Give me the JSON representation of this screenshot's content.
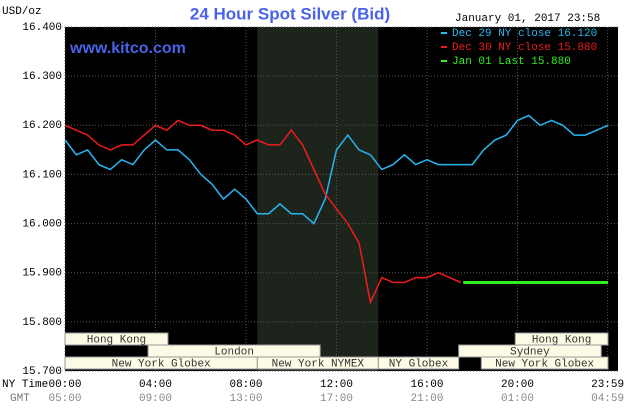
{
  "chart_data": {
    "type": "line",
    "title": "24 Hour Spot Silver (Bid)",
    "y_axis_label": "USD/oz",
    "timestamp": "January 01, 2017 23:58",
    "watermark": "www.kitco.com",
    "x_row_labels": [
      "NY Time",
      "GMT"
    ],
    "xlim": [
      0,
      24
    ],
    "xticks": [
      {
        "value": 0,
        "label": "00:00"
      },
      {
        "value": 4,
        "label": "04:00"
      },
      {
        "value": 8,
        "label": "08:00"
      },
      {
        "value": 12,
        "label": "12:00"
      },
      {
        "value": 16,
        "label": "16:00"
      },
      {
        "value": 20,
        "label": "20:00"
      },
      {
        "value": 23.983,
        "label": "23:59"
      }
    ],
    "gmt_labels": [
      "05:00",
      "09:00",
      "13:00",
      "17:00",
      "21:00",
      "01:00",
      "04:59"
    ],
    "ylim": [
      15.7,
      16.4
    ],
    "yticks": [
      {
        "value": 15.7,
        "label": "15.700"
      },
      {
        "value": 15.8,
        "label": "15.800"
      },
      {
        "value": 15.9,
        "label": "15.900"
      },
      {
        "value": 16.0,
        "label": "16.000"
      },
      {
        "value": 16.1,
        "label": "16.100"
      },
      {
        "value": 16.2,
        "label": "16.200"
      },
      {
        "value": 16.3,
        "label": "16.300"
      },
      {
        "value": 16.4,
        "label": "16.400"
      }
    ],
    "grid": true,
    "shaded_range": [
      8.5,
      13.85
    ],
    "series": [
      {
        "name": "Dec 29 NY close 16.120",
        "color": "#29b6f0",
        "x": [
          0,
          0.5,
          1,
          1.5,
          2,
          2.5,
          3,
          3.5,
          4,
          4.5,
          5,
          5.5,
          6,
          6.5,
          7,
          7.5,
          8,
          8.5,
          9,
          9.5,
          10,
          10.5,
          11,
          11.5,
          12,
          12.5,
          13,
          13.5,
          14,
          14.5,
          15,
          15.5,
          16,
          16.5,
          17,
          17.5,
          18,
          18.5,
          19,
          19.5,
          20,
          20.5,
          21,
          21.5,
          22,
          22.5,
          23,
          23.5,
          24
        ],
        "values": [
          16.17,
          16.14,
          16.15,
          16.12,
          16.11,
          16.13,
          16.12,
          16.15,
          16.17,
          16.15,
          16.15,
          16.13,
          16.1,
          16.08,
          16.05,
          16.07,
          16.05,
          16.02,
          16.02,
          16.04,
          16.02,
          16.02,
          16.0,
          16.05,
          16.15,
          16.18,
          16.15,
          16.14,
          16.11,
          16.12,
          16.14,
          16.12,
          16.13,
          16.12,
          16.12,
          16.12,
          16.12,
          16.15,
          16.17,
          16.18,
          16.21,
          16.22,
          16.2,
          16.21,
          16.2,
          16.18,
          16.18,
          16.19,
          16.2
        ]
      },
      {
        "name": "Dec 30 NY close 15.880",
        "color": "#ee1c1c",
        "x": [
          0,
          0.5,
          1,
          1.5,
          2,
          2.5,
          3,
          3.5,
          4,
          4.5,
          5,
          5.5,
          6,
          6.5,
          7,
          7.5,
          8,
          8.5,
          9,
          9.5,
          10,
          10.5,
          11,
          11.5,
          12,
          12.5,
          13,
          13.5,
          14,
          14.5,
          15,
          15.5,
          16,
          16.5,
          17,
          17.5
        ],
        "values": [
          16.2,
          16.19,
          16.18,
          16.16,
          16.15,
          16.16,
          16.16,
          16.18,
          16.2,
          16.19,
          16.21,
          16.2,
          16.2,
          16.19,
          16.19,
          16.18,
          16.16,
          16.17,
          16.16,
          16.16,
          16.19,
          16.16,
          16.11,
          16.06,
          16.03,
          16.0,
          15.96,
          15.84,
          15.89,
          15.88,
          15.88,
          15.89,
          15.89,
          15.9,
          15.89,
          15.88
        ]
      },
      {
        "name": "Jan 01 Last 15.880",
        "color": "#33ee22",
        "x": [
          17.6,
          24
        ],
        "values": [
          15.88,
          15.88
        ]
      }
    ],
    "session_rows": [
      [
        {
          "name": "Hong Kong",
          "start": 0,
          "end": 4.55
        },
        {
          "name": "Hong Kong",
          "start": 19.9,
          "end": 24
        }
      ],
      [
        {
          "name": "London",
          "start": 3.67,
          "end": 11.28
        },
        {
          "name": "Sydney",
          "start": 17.4,
          "end": 23.7
        }
      ],
      [
        {
          "name": "New York Globex",
          "start": 0,
          "end": 8.5
        },
        {
          "name": "New York NYMEX",
          "start": 8.5,
          "end": 13.85
        },
        {
          "name": "NY Globex",
          "start": 13.85,
          "end": 17.4
        },
        {
          "name": "New York Globex",
          "start": 18.4,
          "end": 24
        }
      ]
    ]
  }
}
